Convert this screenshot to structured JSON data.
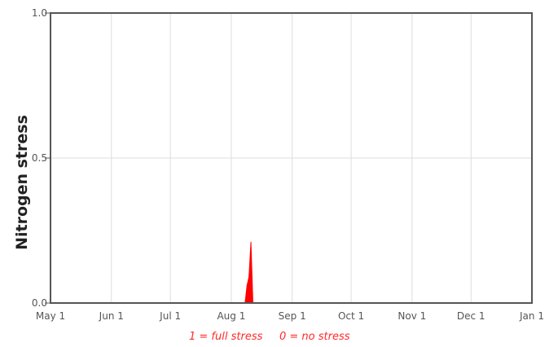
{
  "chart_data": {
    "type": "area",
    "title": "",
    "ylabel": "Nitrogen stress",
    "xlabel": "",
    "x_ticks": [
      "May 1",
      "Jun 1",
      "Jul 1",
      "Aug 1",
      "Sep 1",
      "Oct 1",
      "Nov 1",
      "Dec 1",
      "Jan 1"
    ],
    "y_ticks": [
      "0.0",
      "0.5",
      "1.0"
    ],
    "ylim": [
      0,
      1
    ],
    "xlim": [
      "May 1",
      "Jan 1"
    ],
    "grid": true,
    "annotation": {
      "full": "1 = full stress",
      "none": "0 = no stress"
    },
    "series": [
      {
        "color": "#ff0000",
        "points": [
          {
            "x": "Aug 8",
            "y": 0.0
          },
          {
            "x": "Aug 9",
            "y": 0.06
          },
          {
            "x": "Aug 10",
            "y": 0.09
          },
          {
            "x": "Aug 11",
            "y": 0.21
          },
          {
            "x": "Aug 12",
            "y": 0.0
          }
        ]
      }
    ]
  }
}
